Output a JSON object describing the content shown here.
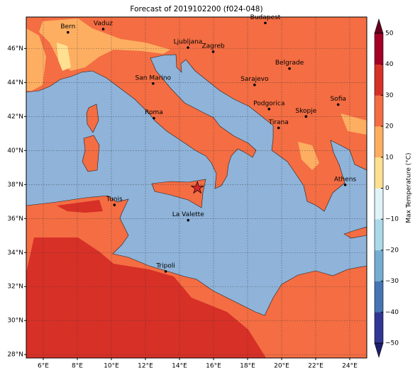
{
  "title": "Forecast of 2019102200 (f024-048)",
  "map": {
    "xlim": [
      5,
      25
    ],
    "ylim": [
      27.8,
      47.85
    ],
    "xticks": [
      {
        "value": 6,
        "label": "6°E"
      },
      {
        "value": 8,
        "label": "8°E"
      },
      {
        "value": 10,
        "label": "10°E"
      },
      {
        "value": 12,
        "label": "12°E"
      },
      {
        "value": 14,
        "label": "14°E"
      },
      {
        "value": 16,
        "label": "16°E"
      },
      {
        "value": 18,
        "label": "18°E"
      },
      {
        "value": 20,
        "label": "20°E"
      },
      {
        "value": 22,
        "label": "22°E"
      },
      {
        "value": 24,
        "label": "24°E"
      }
    ],
    "yticks": [
      {
        "value": 28,
        "label": "28°N"
      },
      {
        "value": 30,
        "label": "30°N"
      },
      {
        "value": 32,
        "label": "32°N"
      },
      {
        "value": 34,
        "label": "34°N"
      },
      {
        "value": 36,
        "label": "36°N"
      },
      {
        "value": 38,
        "label": "38°N"
      },
      {
        "value": 40,
        "label": "40°N"
      },
      {
        "value": 42,
        "label": "42°N"
      },
      {
        "value": 44,
        "label": "44°N"
      },
      {
        "value": 46,
        "label": "46°N"
      }
    ],
    "grid": true,
    "cities": [
      {
        "name": "Bern",
        "lon": 7.45,
        "lat": 46.95
      },
      {
        "name": "Vaduz",
        "lon": 9.52,
        "lat": 47.14
      },
      {
        "name": "Budapest",
        "lon": 19.04,
        "lat": 47.5
      },
      {
        "name": "Ljubljana",
        "lon": 14.5,
        "lat": 46.05
      },
      {
        "name": "Zagreb",
        "lon": 15.98,
        "lat": 45.81
      },
      {
        "name": "Belgrade",
        "lon": 20.46,
        "lat": 44.82
      },
      {
        "name": "San Marino",
        "lon": 12.45,
        "lat": 43.94
      },
      {
        "name": "Sarajevo",
        "lon": 18.41,
        "lat": 43.86
      },
      {
        "name": "Sofia",
        "lon": 23.32,
        "lat": 42.7
      },
      {
        "name": "Podgorica",
        "lon": 19.26,
        "lat": 42.44
      },
      {
        "name": "Skopje",
        "lon": 21.43,
        "lat": 42.0
      },
      {
        "name": "Roma",
        "lon": 12.5,
        "lat": 41.9
      },
      {
        "name": "Tirana",
        "lon": 19.82,
        "lat": 41.33
      },
      {
        "name": "Athens",
        "lon": 23.73,
        "lat": 37.98
      },
      {
        "name": "Tunis",
        "lon": 10.18,
        "lat": 36.8
      },
      {
        "name": "La Valette",
        "lon": 14.51,
        "lat": 35.9
      },
      {
        "name": "Tripoli",
        "lon": 13.19,
        "lat": 32.89
      }
    ],
    "marker": {
      "lon": 15.05,
      "lat": 37.8,
      "color": "#d62728"
    }
  },
  "colorbar": {
    "label": "Max Temperature (°C)",
    "lim": [
      -50,
      50
    ],
    "ticks": [
      {
        "value": -50,
        "label": "−50"
      },
      {
        "value": -40,
        "label": "−40"
      },
      {
        "value": -30,
        "label": "−30"
      },
      {
        "value": -20,
        "label": "−20"
      },
      {
        "value": -10,
        "label": "−10"
      },
      0,
      10,
      20,
      30,
      40,
      50
    ],
    "colors": [
      "#313695",
      "#4575b4",
      "#74add1",
      "#abd9e9",
      "#e0f3f8",
      "#fee090",
      "#fdae61",
      "#f46d43",
      "#d73027",
      "#a50026"
    ],
    "under_color": "#1f1f6e",
    "over_color": "#67001f"
  }
}
